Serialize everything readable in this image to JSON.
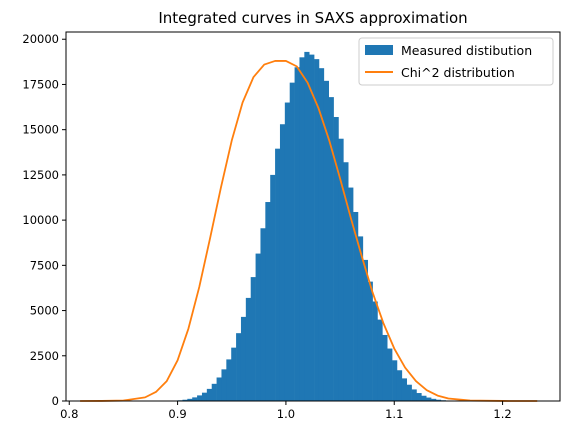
{
  "chart_data": {
    "type": "bar",
    "title": "Integrated curves in SAXS approximation",
    "xlabel": "",
    "ylabel": "",
    "xlim": [
      0.797,
      1.253
    ],
    "ylim": [
      0,
      20400
    ],
    "xticks": [
      0.8,
      0.9,
      1.0,
      1.1,
      1.2
    ],
    "xtick_labels": [
      "0.8",
      "0.9",
      "1.0",
      "1.1",
      "1.2"
    ],
    "yticks": [
      0,
      2500,
      5000,
      7500,
      10000,
      12500,
      15000,
      17500,
      20000
    ],
    "ytick_labels": [
      "0",
      "2500",
      "5000",
      "7500",
      "10000",
      "12500",
      "15000",
      "17500",
      "20000"
    ],
    "grid": false,
    "legend_position": "upper right",
    "series": [
      {
        "name": "Measured distibution",
        "kind": "histogram",
        "color": "#1f77b4",
        "bin_start": 0.81,
        "bin_width": 0.0045,
        "values": [
          0,
          0,
          0,
          0,
          0,
          0,
          0,
          0,
          0,
          0,
          0,
          0,
          0,
          0,
          0,
          0,
          0,
          2,
          8,
          20,
          40,
          70,
          120,
          200,
          310,
          460,
          670,
          950,
          1300,
          1750,
          2300,
          2950,
          3750,
          4650,
          5700,
          6850,
          8150,
          9550,
          11000,
          12500,
          13950,
          15300,
          16500,
          17600,
          18450,
          19000,
          19300,
          19150,
          18900,
          18400,
          17700,
          16800,
          15700,
          14500,
          13200,
          11800,
          10450,
          9100,
          7800,
          6600,
          5500,
          4500,
          3650,
          2900,
          2250,
          1700,
          1250,
          900,
          640,
          440,
          290,
          190,
          120,
          72,
          42,
          24,
          12,
          6,
          2,
          0,
          0,
          0,
          0,
          0,
          0,
          0,
          0,
          0,
          0,
          0,
          0,
          0,
          0,
          0,
          0,
          0,
          0,
          0,
          0,
          0
        ]
      },
      {
        "name": "Chi^2 distribution",
        "kind": "line",
        "color": "#ff7f0e",
        "x": [
          0.81,
          0.83,
          0.85,
          0.87,
          0.88,
          0.89,
          0.9,
          0.91,
          0.92,
          0.93,
          0.94,
          0.95,
          0.96,
          0.97,
          0.98,
          0.99,
          1.0,
          1.01,
          1.02,
          1.03,
          1.04,
          1.05,
          1.06,
          1.07,
          1.08,
          1.09,
          1.1,
          1.11,
          1.12,
          1.13,
          1.14,
          1.15,
          1.17,
          1.2,
          1.232
        ],
        "y": [
          0,
          3,
          25,
          200,
          500,
          1100,
          2250,
          4000,
          6300,
          9000,
          11800,
          14400,
          16500,
          17900,
          18600,
          18800,
          18800,
          18500,
          17600,
          16200,
          14400,
          12300,
          10100,
          8000,
          6000,
          4300,
          2900,
          1850,
          1100,
          600,
          300,
          140,
          25,
          2,
          0
        ]
      }
    ]
  }
}
